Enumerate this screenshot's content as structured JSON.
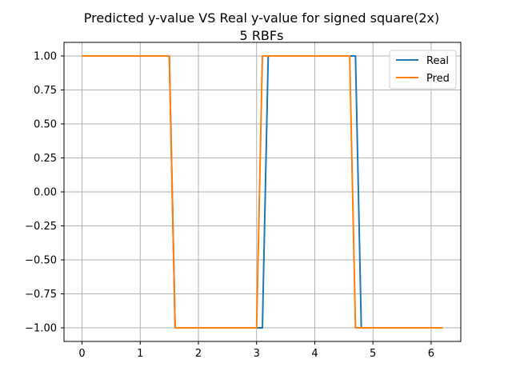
{
  "chart_data": {
    "type": "line",
    "title": "Predicted y-value VS Real y-value for signed square(2x)",
    "subtitle": "5 RBFs",
    "xlabel": "",
    "ylabel": "",
    "xlim": [
      -0.31,
      6.51
    ],
    "ylim": [
      -1.1,
      1.1
    ],
    "xticks": [
      0,
      1,
      2,
      3,
      4,
      5,
      6
    ],
    "xtick_labels": [
      "0",
      "1",
      "2",
      "3",
      "4",
      "5",
      "6"
    ],
    "yticks": [
      1.0,
      0.75,
      0.5,
      0.25,
      0.0,
      -0.25,
      -0.5,
      -0.75,
      -1.0
    ],
    "ytick_labels": [
      "1.00",
      "0.75",
      "0.50",
      "0.25",
      "0.00",
      "−0.25",
      "−0.50",
      "−0.75",
      "−1.00"
    ],
    "grid": true,
    "legend_position": "upper-right",
    "series": [
      {
        "name": "Real",
        "color": "#1f77b4",
        "x": [
          0.0,
          1.5,
          1.6,
          3.1,
          3.2,
          4.7,
          4.8,
          6.2
        ],
        "y": [
          1,
          1,
          -1,
          -1,
          1,
          1,
          -1,
          -1
        ]
      },
      {
        "name": "Pred",
        "color": "#ff7f0e",
        "x": [
          0.0,
          1.5,
          1.6,
          3.0,
          3.1,
          4.6,
          4.7,
          6.2
        ],
        "y": [
          1,
          1,
          -1,
          -1,
          1,
          1,
          -1,
          -1
        ]
      }
    ]
  }
}
